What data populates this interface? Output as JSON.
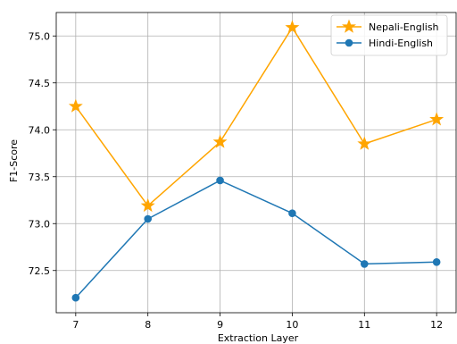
{
  "chart_data": {
    "type": "line",
    "title": "",
    "xlabel": "Extraction Layer",
    "ylabel": "F1-Score",
    "x": [
      7,
      8,
      9,
      10,
      11,
      12
    ],
    "xticks": [
      "7",
      "8",
      "9",
      "10",
      "11",
      "12"
    ],
    "yticks": [
      "72.5",
      "73.0",
      "73.5",
      "74.0",
      "74.5",
      "75.0"
    ],
    "ylim": [
      72.05,
      75.25
    ],
    "grid": true,
    "legend_position": "top-right",
    "series": [
      {
        "name": "Nepali-English",
        "color": "#ffa500",
        "marker": "star",
        "values": [
          74.25,
          73.19,
          73.87,
          75.09,
          73.85,
          74.11
        ]
      },
      {
        "name": "Hindi-English",
        "color": "#1f77b4",
        "marker": "circle",
        "values": [
          72.21,
          73.05,
          73.46,
          73.11,
          72.57,
          72.59
        ]
      }
    ]
  }
}
